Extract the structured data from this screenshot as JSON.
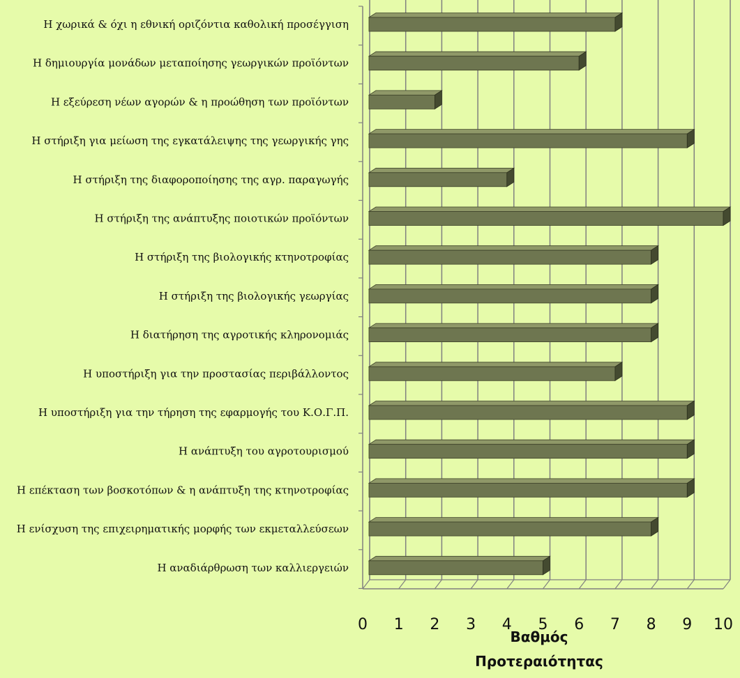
{
  "chart_data": {
    "type": "bar",
    "orientation": "horizontal",
    "style": "3d",
    "categories": [
      "Η χωρικά & όχι η εθνική οριζόντια καθολική προσέγγιση",
      "Η δημιουργία μονάδων μεταποίησης γεωργικών προϊόντων",
      "Η εξεύρεση νέων αγορών & η προώθηση των προϊόντων",
      "Η στήριξη για μείωση της εγκατάλειψης της γεωργικής γης",
      "Η στήριξη της διαφοροποίησης της αγρ. παραγωγής",
      "Η στήριξη της ανάπτυξης ποιοτικών προϊόντων",
      "Η στήριξη της βιολογικής κτηνοτροφίας",
      "Η στήριξη της βιολογικής γεωργίας",
      "Η διατήρηση της αγροτικής κληρονομιάς",
      "Η υποστήριξη για την προστασίας περιβάλλοντος",
      "Η υποστήριξη για την τήρηση της εφαρμογής του Κ.Ο.Γ.Π.",
      "Η ανάπτυξη του αγροτουρισμού",
      "Η επέκταση των βοσκοτόπων & η ανάπτυξη της κτηνοτροφίας",
      "Η ενίσχυση της επιχειρηματικής μορφής των εκμεταλλεύσεων",
      "Η αναδιάρθρωση των καλλιεργειών"
    ],
    "values": [
      7,
      6,
      2,
      9,
      4,
      10,
      8,
      8,
      8,
      7,
      9,
      9,
      9,
      8,
      5
    ],
    "xlim": [
      0,
      10
    ],
    "xticks": [
      "0",
      "1",
      "2",
      "3",
      "4",
      "5",
      "6",
      "7",
      "8",
      "9",
      "10"
    ],
    "xlabel": [
      "Βαθμός",
      "Προτεραιότητας"
    ],
    "ylabel": "",
    "grid": "vertical",
    "colors": {
      "background": "#e6fbaa",
      "bar_front": "#6e7650",
      "bar_top": "#8f9868",
      "bar_side": "#444a30",
      "grid": "#808080"
    }
  }
}
